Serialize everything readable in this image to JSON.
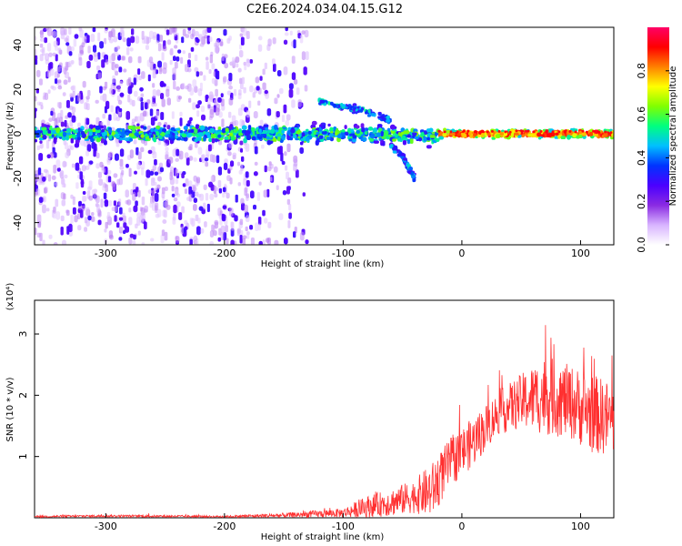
{
  "figure": {
    "title": "C2E6.2024.034.04.15.G12"
  },
  "chart_data": [
    {
      "type": "heatmap",
      "xlabel": "Height of straight line (km)",
      "ylabel": "Frequency (Hz)",
      "xlim": [
        -360,
        128
      ],
      "ylim": [
        -50,
        48
      ],
      "xticks": [
        -300,
        -200,
        -100,
        0,
        100
      ],
      "yticks": [
        -40,
        -20,
        0,
        20,
        40
      ],
      "colorbar": {
        "label": "Normalized spectral amplitude",
        "range": [
          0,
          1
        ],
        "ticks": [
          "0.0",
          "0.2",
          "0.4",
          "0.6",
          "0.8"
        ],
        "colormap": [
          "#ffffff",
          "#d8b4ff",
          "#8a2be2",
          "#4b00ff",
          "#0033ff",
          "#00bfff",
          "#00ff80",
          "#80ff00",
          "#ffff00",
          "#ff8000",
          "#ff0000",
          "#ff0066"
        ]
      },
      "features": {
        "noise_scatter_xrange": [
          -360,
          -130
        ],
        "dense_noise_xrange": [
          -360,
          -180
        ],
        "main_band_center_hz": 0,
        "main_band_halfwidth_hz": 5,
        "descending_branch": [
          [
            -60,
            -5
          ],
          [
            -50,
            -10
          ],
          [
            -45,
            -15
          ],
          [
            -40,
            -20
          ]
        ],
        "upper_branch": [
          [
            -120,
            15
          ],
          [
            -100,
            12
          ],
          [
            -80,
            10
          ],
          [
            -60,
            6
          ]
        ],
        "strong_signal_xrange": [
          -20,
          128
        ]
      }
    },
    {
      "type": "line",
      "xlabel": "Height of straight line (km)",
      "ylabel": "SNR (10 * v/v)",
      "yscale_label": "(x10⁴)",
      "xlim": [
        -360,
        128
      ],
      "ylim": [
        0,
        3.55
      ],
      "xticks": [
        -300,
        -200,
        -100,
        0,
        100
      ],
      "yticks": [
        1,
        2,
        3
      ],
      "series": [
        {
          "color": "#ff3030",
          "envelope": [
            {
              "x": -360,
              "base": 0.02,
              "amp": 0.03
            },
            {
              "x": -300,
              "base": 0.03,
              "amp": 0.04
            },
            {
              "x": -200,
              "base": 0.02,
              "amp": 0.03
            },
            {
              "x": -150,
              "base": 0.04,
              "amp": 0.08
            },
            {
              "x": -100,
              "base": 0.08,
              "amp": 0.15
            },
            {
              "x": -80,
              "base": 0.18,
              "amp": 0.35
            },
            {
              "x": -60,
              "base": 0.25,
              "amp": 0.45
            },
            {
              "x": -40,
              "base": 0.35,
              "amp": 0.55
            },
            {
              "x": -25,
              "base": 0.45,
              "amp": 0.9
            },
            {
              "x": -10,
              "base": 0.9,
              "amp": 0.8
            },
            {
              "x": 10,
              "base": 1.25,
              "amp": 0.8
            },
            {
              "x": 30,
              "base": 1.7,
              "amp": 0.7
            },
            {
              "x": 50,
              "base": 1.9,
              "amp": 0.9
            },
            {
              "x": 70,
              "base": 2.0,
              "amp": 1.3
            },
            {
              "x": 90,
              "base": 1.9,
              "amp": 1.2
            },
            {
              "x": 110,
              "base": 1.7,
              "amp": 1.3
            },
            {
              "x": 128,
              "base": 1.6,
              "amp": 1.2
            }
          ]
        }
      ]
    }
  ]
}
